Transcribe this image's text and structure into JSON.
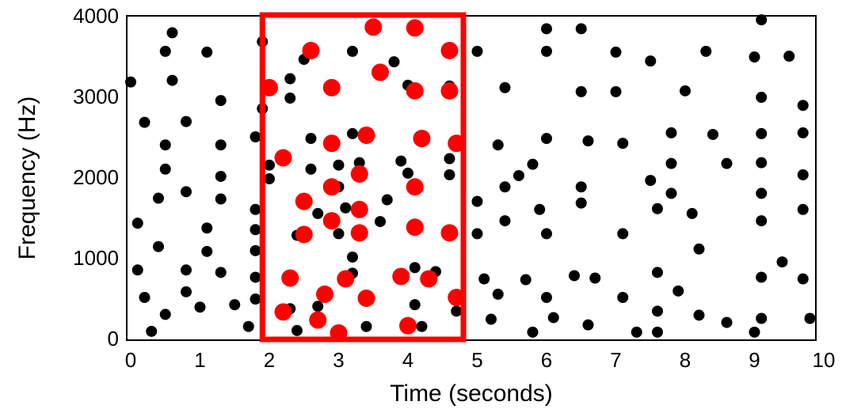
{
  "chart_data": {
    "type": "scatter",
    "xlabel": "Time (seconds)",
    "ylabel": "Frequency (Hz)",
    "xlim": [
      0,
      10
    ],
    "ylim": [
      0,
      4000
    ],
    "x_ticks": [
      "0",
      "1",
      "2",
      "3",
      "4",
      "5",
      "6",
      "7",
      "8",
      "9",
      "10"
    ],
    "y_ticks": [
      "0",
      "1000",
      "2000",
      "3000",
      "4000"
    ],
    "grid": false,
    "colors": {
      "background_points": "#000000",
      "highlight_points": "#ff0000",
      "highlight_box": "#ff0000"
    },
    "highlight_window": {
      "x": [
        1.9,
        4.8
      ],
      "y": [
        0,
        4000
      ]
    },
    "series": [
      {
        "color": "#000000",
        "points": [
          [
            0.0,
            3180
          ],
          [
            0.1,
            1430
          ],
          [
            0.1,
            850
          ],
          [
            0.2,
            2680
          ],
          [
            0.2,
            510
          ],
          [
            0.3,
            90
          ],
          [
            0.4,
            1740
          ],
          [
            0.4,
            1140
          ],
          [
            0.5,
            3560
          ],
          [
            0.5,
            2400
          ],
          [
            0.5,
            2100
          ],
          [
            0.5,
            300
          ],
          [
            0.6,
            3790
          ],
          [
            0.6,
            3200
          ],
          [
            0.8,
            2690
          ],
          [
            0.8,
            1820
          ],
          [
            0.8,
            850
          ],
          [
            0.8,
            580
          ],
          [
            1.0,
            390
          ],
          [
            1.1,
            3550
          ],
          [
            1.1,
            1370
          ],
          [
            1.1,
            1080
          ],
          [
            1.3,
            2950
          ],
          [
            1.3,
            2400
          ],
          [
            1.3,
            2010
          ],
          [
            1.3,
            1730
          ],
          [
            1.3,
            820
          ],
          [
            1.5,
            420
          ],
          [
            1.7,
            150
          ],
          [
            1.8,
            1600
          ],
          [
            1.8,
            1350
          ],
          [
            1.8,
            1090
          ],
          [
            1.8,
            760
          ],
          [
            1.8,
            490
          ],
          [
            1.8,
            2500
          ],
          [
            1.9,
            3680
          ],
          [
            1.9,
            2850
          ],
          [
            2.0,
            2150
          ],
          [
            2.0,
            1980
          ],
          [
            2.3,
            3220
          ],
          [
            2.3,
            2980
          ],
          [
            2.3,
            370
          ],
          [
            2.4,
            1280
          ],
          [
            2.4,
            100
          ],
          [
            2.5,
            3460
          ],
          [
            2.6,
            2480
          ],
          [
            2.6,
            2100
          ],
          [
            2.7,
            1550
          ],
          [
            2.7,
            400
          ],
          [
            3.0,
            2150
          ],
          [
            3.0,
            1880
          ],
          [
            3.0,
            1300
          ],
          [
            3.1,
            1620
          ],
          [
            3.2,
            3560
          ],
          [
            3.2,
            2540
          ],
          [
            3.2,
            1010
          ],
          [
            3.2,
            810
          ],
          [
            3.3,
            2180
          ],
          [
            3.4,
            150
          ],
          [
            3.6,
            1450
          ],
          [
            3.7,
            1720
          ],
          [
            3.8,
            3430
          ],
          [
            3.9,
            2200
          ],
          [
            4.0,
            2050
          ],
          [
            4.0,
            3140
          ],
          [
            4.1,
            880
          ],
          [
            4.1,
            420
          ],
          [
            4.2,
            150
          ],
          [
            4.4,
            830
          ],
          [
            4.6,
            2230
          ],
          [
            4.6,
            2030
          ],
          [
            4.6,
            3130
          ],
          [
            4.7,
            340
          ],
          [
            5.0,
            3560
          ],
          [
            5.0,
            1700
          ],
          [
            5.0,
            1300
          ],
          [
            5.1,
            740
          ],
          [
            5.2,
            240
          ],
          [
            5.3,
            550
          ],
          [
            5.3,
            2400
          ],
          [
            5.4,
            3110
          ],
          [
            5.4,
            1880
          ],
          [
            5.4,
            1460
          ],
          [
            5.6,
            2020
          ],
          [
            5.7,
            730
          ],
          [
            5.8,
            80
          ],
          [
            5.8,
            2160
          ],
          [
            5.9,
            1600
          ],
          [
            6.0,
            3560
          ],
          [
            6.0,
            3840
          ],
          [
            6.0,
            2480
          ],
          [
            6.0,
            1300
          ],
          [
            6.0,
            510
          ],
          [
            6.1,
            260
          ],
          [
            6.4,
            780
          ],
          [
            6.5,
            3840
          ],
          [
            6.5,
            3060
          ],
          [
            6.5,
            1880
          ],
          [
            6.5,
            1680
          ],
          [
            6.6,
            2450
          ],
          [
            6.6,
            170
          ],
          [
            6.7,
            750
          ],
          [
            7.0,
            3060
          ],
          [
            7.0,
            3550
          ],
          [
            7.1,
            2420
          ],
          [
            7.1,
            1300
          ],
          [
            7.1,
            510
          ],
          [
            7.3,
            80
          ],
          [
            7.5,
            3440
          ],
          [
            7.5,
            1960
          ],
          [
            7.6,
            820
          ],
          [
            7.6,
            340
          ],
          [
            7.6,
            80
          ],
          [
            7.6,
            1610
          ],
          [
            7.8,
            2550
          ],
          [
            7.8,
            2170
          ],
          [
            7.8,
            1800
          ],
          [
            7.9,
            590
          ],
          [
            8.0,
            3070
          ],
          [
            8.1,
            1550
          ],
          [
            8.2,
            1110
          ],
          [
            8.2,
            290
          ],
          [
            8.3,
            3560
          ],
          [
            8.4,
            2530
          ],
          [
            8.6,
            2170
          ],
          [
            8.6,
            200
          ],
          [
            9.0,
            3490
          ],
          [
            9.0,
            80
          ],
          [
            9.1,
            3950
          ],
          [
            9.1,
            2540
          ],
          [
            9.1,
            2180
          ],
          [
            9.1,
            1800
          ],
          [
            9.1,
            1460
          ],
          [
            9.1,
            2990
          ],
          [
            9.1,
            760
          ],
          [
            9.1,
            250
          ],
          [
            9.4,
            950
          ],
          [
            9.5,
            3500
          ],
          [
            9.7,
            2550
          ],
          [
            9.7,
            2030
          ],
          [
            9.7,
            1600
          ],
          [
            9.7,
            740
          ],
          [
            9.7,
            2890
          ],
          [
            9.8,
            250
          ]
        ]
      },
      {
        "color": "#ff0000",
        "points": [
          [
            2.0,
            3110
          ],
          [
            2.2,
            2240
          ],
          [
            2.2,
            330
          ],
          [
            2.3,
            750
          ],
          [
            2.5,
            1700
          ],
          [
            2.5,
            1290
          ],
          [
            2.6,
            3570
          ],
          [
            2.7,
            230
          ],
          [
            2.8,
            550
          ],
          [
            2.9,
            3110
          ],
          [
            2.9,
            2420
          ],
          [
            2.9,
            1880
          ],
          [
            2.9,
            1460
          ],
          [
            3.0,
            70
          ],
          [
            3.1,
            740
          ],
          [
            3.3,
            2040
          ],
          [
            3.3,
            1600
          ],
          [
            3.3,
            1310
          ],
          [
            3.4,
            2520
          ],
          [
            3.4,
            500
          ],
          [
            3.5,
            3860
          ],
          [
            3.6,
            3300
          ],
          [
            3.9,
            770
          ],
          [
            4.0,
            160
          ],
          [
            4.1,
            3850
          ],
          [
            4.1,
            3070
          ],
          [
            4.1,
            1880
          ],
          [
            4.1,
            1380
          ],
          [
            4.2,
            2480
          ],
          [
            4.3,
            740
          ],
          [
            4.6,
            3570
          ],
          [
            4.6,
            3070
          ],
          [
            4.6,
            1310
          ],
          [
            4.7,
            2420
          ],
          [
            4.7,
            510
          ]
        ]
      }
    ]
  }
}
